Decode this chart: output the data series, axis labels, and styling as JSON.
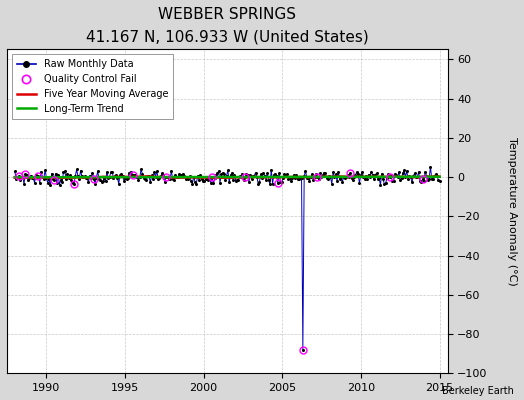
{
  "title": "WEBBER SPRINGS",
  "subtitle": "41.167 N, 106.933 W (United States)",
  "ylabel": "Temperature Anomaly (°C)",
  "watermark": "Berkeley Earth",
  "xlim": [
    1987.5,
    2015.5
  ],
  "ylim": [
    -100,
    65
  ],
  "yticks": [
    -100,
    -80,
    -60,
    -40,
    -20,
    0,
    20,
    40,
    60
  ],
  "xticks": [
    1990,
    1995,
    2000,
    2005,
    2010,
    2015
  ],
  "x_start": 1988.0,
  "x_end": 2015.0,
  "n_months": 324,
  "spike_x": 2006.25,
  "spike_y": -88.0,
  "background_color": "#d8d8d8",
  "plot_bg_color": "#ffffff",
  "raw_line_color": "#0000bb",
  "raw_dot_color": "#000000",
  "qc_fail_color": "#ff00ff",
  "moving_avg_color": "#dd0000",
  "trend_color": "#00aa00",
  "grid_color": "#bbbbbb",
  "title_fontsize": 11,
  "subtitle_fontsize": 8.5,
  "tick_fontsize": 8,
  "ylabel_fontsize": 8,
  "seed": 7
}
